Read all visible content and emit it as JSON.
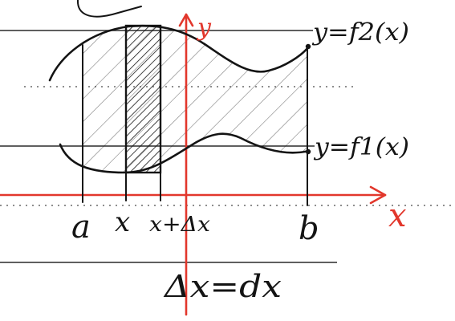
{
  "diagram": {
    "curve_labels": {
      "upper": "y=f2(x)",
      "lower": "y=f1(x)"
    },
    "axis_labels": {
      "y": "y",
      "x": "x"
    },
    "bound_labels": {
      "a": "a",
      "x": "x",
      "x_plus_dx": "x+Δx",
      "b": "b"
    },
    "footnote": "Δx=dx"
  },
  "colors": {
    "ink": "#141414",
    "axis": "#e2372c",
    "paper": "#ffffff",
    "rule": "#2a2a2a"
  }
}
